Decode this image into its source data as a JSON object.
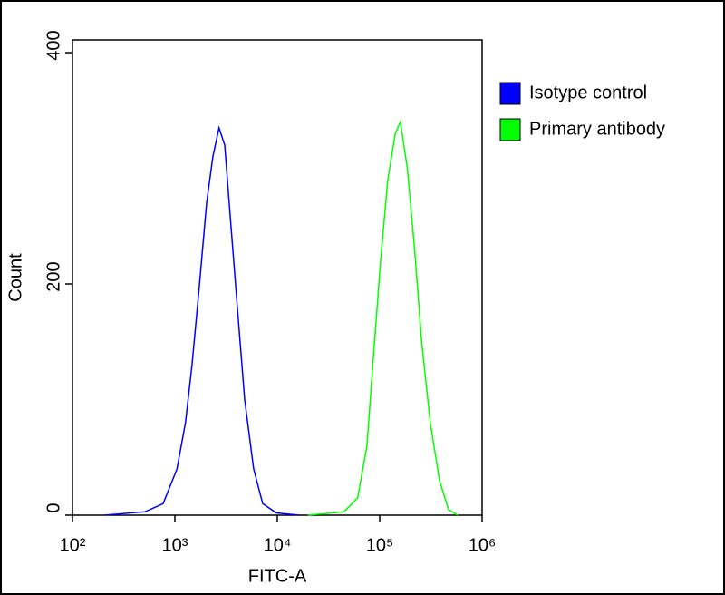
{
  "chart_data": {
    "type": "line",
    "xlabel": "FITC-A",
    "ylabel": "Count",
    "xscale": "log",
    "xlim": [
      100,
      1000000
    ],
    "ylim": [
      0,
      411
    ],
    "xticks": [
      {
        "value": 100,
        "label": "10²"
      },
      {
        "value": 1000,
        "label": "10³"
      },
      {
        "value": 10000,
        "label": "10⁴"
      },
      {
        "value": 100000,
        "label": "10⁵"
      },
      {
        "value": 1000000,
        "label": "10⁶"
      }
    ],
    "yticks": [
      0,
      200,
      400
    ],
    "legend": "upper right",
    "series": [
      {
        "name": "Isotype control",
        "color": "#0000ff",
        "x": [
          204,
          512,
          767,
          1047,
          1270,
          1470,
          1740,
          2040,
          2350,
          2700,
          3070,
          3530,
          4070,
          4800,
          5870,
          7200,
          9800,
          16300
        ],
        "values": [
          0,
          3,
          10,
          40,
          80,
          130,
          200,
          270,
          310,
          335,
          320,
          250,
          180,
          100,
          40,
          10,
          2,
          0
        ]
      },
      {
        "name": "Primary antibody",
        "color": "#00ff00",
        "x": [
          19900,
          44900,
          61000,
          75000,
          85700,
          102000,
          120000,
          142000,
          159000,
          186000,
          219000,
          257000,
          312000,
          384000,
          470000,
          576000
        ],
        "values": [
          0,
          3,
          15,
          60,
          130,
          220,
          290,
          330,
          340,
          300,
          230,
          150,
          80,
          30,
          5,
          0
        ]
      }
    ]
  }
}
